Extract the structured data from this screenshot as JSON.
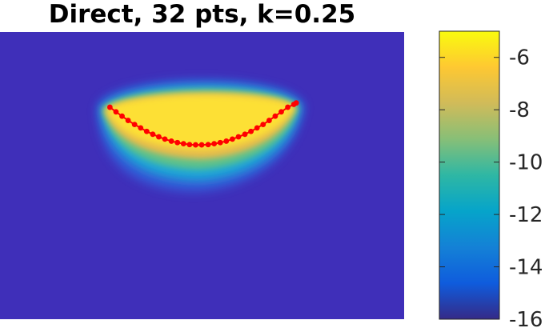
{
  "chart_data": {
    "type": "heatmap",
    "title": "Direct, 32 pts, k=0.25",
    "colormap": "parula",
    "colorbar": {
      "range": [
        -16,
        -5
      ],
      "ticks": [
        -6,
        -8,
        -10,
        -12,
        -14,
        -16
      ],
      "tick_labels": [
        "-6",
        "-8",
        "-10",
        "-12",
        "-14",
        "-16"
      ],
      "location": "right"
    },
    "background_value": -15.5,
    "field_peak_value": -5.2,
    "points": {
      "count": 32,
      "color": "#ff0000",
      "x": [
        0.272,
        0.287,
        0.302,
        0.317,
        0.333,
        0.348,
        0.363,
        0.378,
        0.393,
        0.408,
        0.424,
        0.439,
        0.454,
        0.469,
        0.484,
        0.499,
        0.515,
        0.53,
        0.545,
        0.56,
        0.575,
        0.59,
        0.606,
        0.621,
        0.636,
        0.651,
        0.666,
        0.681,
        0.696,
        0.712,
        0.727,
        0.733
      ],
      "y": [
        0.262,
        0.278,
        0.293,
        0.308,
        0.322,
        0.334,
        0.346,
        0.356,
        0.365,
        0.373,
        0.38,
        0.385,
        0.389,
        0.392,
        0.393,
        0.393,
        0.392,
        0.389,
        0.385,
        0.38,
        0.373,
        0.365,
        0.356,
        0.346,
        0.334,
        0.322,
        0.308,
        0.293,
        0.278,
        0.262,
        0.252,
        0.247
      ]
    }
  }
}
